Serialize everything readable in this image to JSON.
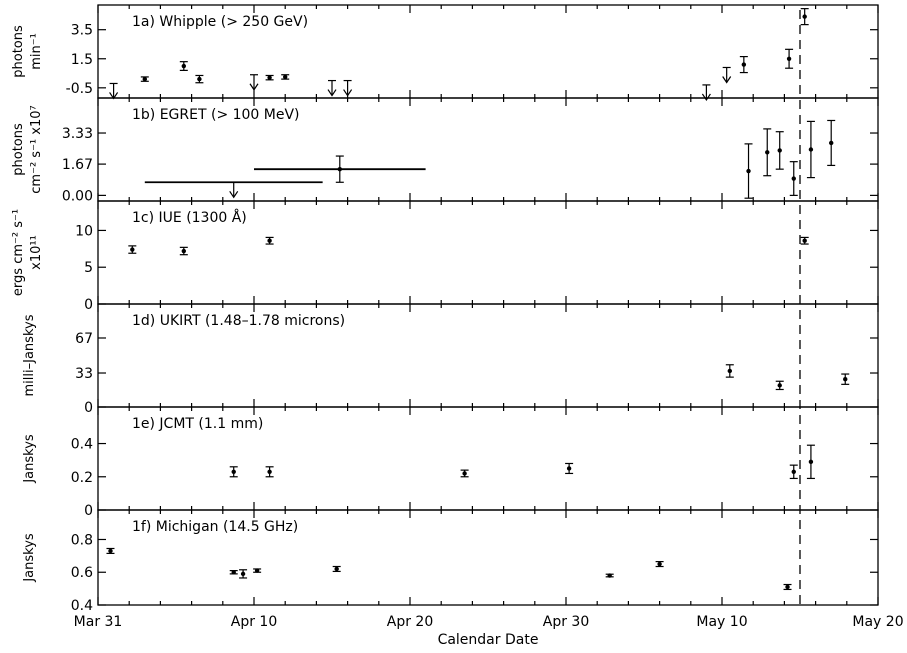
{
  "chart_data": {
    "type": "scatter",
    "xlabel": "Calendar Date",
    "x_ticks": [
      "Mar 31",
      "Apr 10",
      "Apr 20",
      "Apr 30",
      "May 10",
      "May 20"
    ],
    "x_range_days": [
      0,
      50
    ],
    "x_note": "x values are days after Mar 31",
    "vline_day": 45,
    "panels": [
      {
        "id": "1a",
        "title": "1a) Whipple (> 250 GeV)",
        "ylabel": [
          "photons",
          "min⁻¹"
        ],
        "ylim": [
          -1.2,
          5.2
        ],
        "yticks": [
          -0.5,
          1.5,
          3.5
        ],
        "ytick_labels": [
          "-0.5",
          "1.5",
          "3.5"
        ],
        "points": [
          {
            "x": 1,
            "y": -0.2,
            "upper_limit": true
          },
          {
            "x": 3,
            "y": 0.1,
            "err": 0.15
          },
          {
            "x": 5.5,
            "y": 1.0,
            "err": 0.3
          },
          {
            "x": 6.5,
            "y": 0.1,
            "err": 0.25
          },
          {
            "x": 10,
            "y": 0.4,
            "upper_limit": true
          },
          {
            "x": 11,
            "y": 0.2,
            "err": 0.15
          },
          {
            "x": 12,
            "y": 0.25,
            "err": 0.15
          },
          {
            "x": 15,
            "y": 0.0,
            "upper_limit": true
          },
          {
            "x": 16,
            "y": 0.0,
            "upper_limit": true
          },
          {
            "x": 39,
            "y": -0.3,
            "upper_limit": true
          },
          {
            "x": 40.3,
            "y": 0.9,
            "upper_limit": true
          },
          {
            "x": 41.4,
            "y": 1.1,
            "err": 0.55
          },
          {
            "x": 44.3,
            "y": 1.5,
            "err": 0.65
          },
          {
            "x": 45.3,
            "y": 4.4,
            "err": 0.55
          }
        ]
      },
      {
        "id": "1b",
        "title": "1b) EGRET (> 100 MeV)",
        "ylabel": [
          "photons",
          "cm⁻² s⁻¹ x10⁷"
        ],
        "ylim": [
          -0.3,
          5.2
        ],
        "yticks": [
          0.0,
          1.67,
          3.33
        ],
        "ytick_labels": [
          "0.00",
          "1.67",
          "3.33"
        ],
        "points": [
          {
            "x": 8.7,
            "y": 0.7,
            "xerr": 5.7,
            "upper_limit": true
          },
          {
            "x": 15.5,
            "y": 1.4,
            "xerr": 5.5,
            "err": 0.7
          },
          {
            "x": 41.7,
            "y": 1.3,
            "err": 1.45
          },
          {
            "x": 42.9,
            "y": 2.3,
            "err": 1.25
          },
          {
            "x": 43.7,
            "y": 2.4,
            "err": 1.0
          },
          {
            "x": 44.6,
            "y": 0.9,
            "err": 0.9
          },
          {
            "x": 45.7,
            "y": 2.45,
            "err": 1.5
          },
          {
            "x": 47,
            "y": 2.8,
            "err": 1.2
          }
        ]
      },
      {
        "id": "1c",
        "title": "1c) IUE (1300 Å)",
        "ylabel": [
          "ergs cm⁻² s⁻¹",
          "x10¹¹"
        ],
        "ylim": [
          0,
          14
        ],
        "yticks": [
          0,
          5,
          10
        ],
        "ytick_labels": [
          "0",
          "5",
          "10"
        ],
        "points": [
          {
            "x": 2.2,
            "y": 7.4,
            "err": 0.5
          },
          {
            "x": 5.5,
            "y": 7.2,
            "err": 0.5
          },
          {
            "x": 11,
            "y": 8.6,
            "err": 0.45
          },
          {
            "x": 45.3,
            "y": 8.6,
            "err": 0.45
          }
        ]
      },
      {
        "id": "1d",
        "title": "1d) UKIRT (1.48–1.78 microns)",
        "ylabel": [
          "milli–Janskys"
        ],
        "ylim": [
          0,
          100
        ],
        "yticks": [
          0,
          33,
          67
        ],
        "ytick_labels": [
          "0",
          "33",
          "67"
        ],
        "points": [
          {
            "x": 40.5,
            "y": 35,
            "err": 6
          },
          {
            "x": 43.7,
            "y": 21,
            "err": 4
          },
          {
            "x": 47.9,
            "y": 27,
            "err": 5
          }
        ]
      },
      {
        "id": "1e",
        "title": "1e) JCMT (1.1 mm)",
        "ylabel": [
          "Janskys"
        ],
        "ylim": [
          0,
          0.62
        ],
        "yticks": [
          0,
          0.2,
          0.4
        ],
        "ytick_labels": [
          "0",
          "0.2",
          "0.4"
        ],
        "points": [
          {
            "x": 8.7,
            "y": 0.23,
            "err": 0.03
          },
          {
            "x": 11,
            "y": 0.23,
            "err": 0.03
          },
          {
            "x": 23.5,
            "y": 0.22,
            "err": 0.02
          },
          {
            "x": 30.2,
            "y": 0.25,
            "err": 0.03
          },
          {
            "x": 44.6,
            "y": 0.23,
            "err": 0.04
          },
          {
            "x": 45.7,
            "y": 0.29,
            "err": 0.1
          }
        ]
      },
      {
        "id": "1f",
        "title": "1f) Michigan (14.5 GHz)",
        "ylabel": [
          "Janskys"
        ],
        "ylim": [
          0.4,
          0.98
        ],
        "yticks": [
          0.4,
          0.6,
          0.8
        ],
        "ytick_labels": [
          "0.4",
          "0.6",
          "0.8"
        ],
        "points": [
          {
            "x": 0.8,
            "y": 0.73,
            "err": 0.015
          },
          {
            "x": 8.7,
            "y": 0.6,
            "err": 0.01
          },
          {
            "x": 9.3,
            "y": 0.59,
            "err": 0.025
          },
          {
            "x": 10.2,
            "y": 0.61,
            "err": 0.01
          },
          {
            "x": 15.3,
            "y": 0.62,
            "err": 0.015
          },
          {
            "x": 32.8,
            "y": 0.58,
            "err": 0.008
          },
          {
            "x": 36,
            "y": 0.65,
            "err": 0.015
          },
          {
            "x": 44.2,
            "y": 0.51,
            "err": 0.015
          }
        ]
      }
    ]
  }
}
